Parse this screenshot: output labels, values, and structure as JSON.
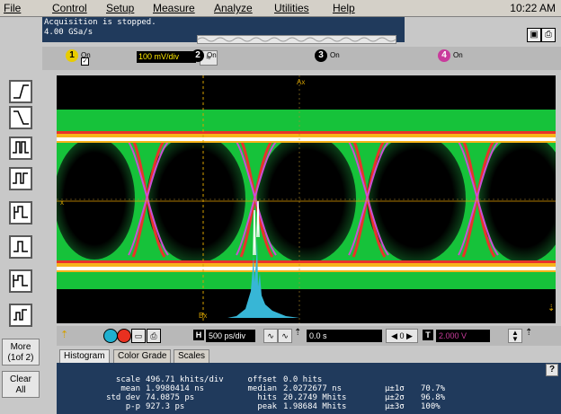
{
  "menubar": {
    "items": [
      "File",
      "Control",
      "Setup",
      "Measure",
      "Analyze",
      "Utilities",
      "Help"
    ],
    "clock": "10:22 AM"
  },
  "status": {
    "line1": "Acquisition is stopped.",
    "line2": "4.00 GSa/s"
  },
  "channels": [
    {
      "num": "1",
      "state": "On",
      "scale": "100 mV/div",
      "checked": true
    },
    {
      "num": "2",
      "state": "On"
    },
    {
      "num": "3",
      "state": "On"
    },
    {
      "num": "4",
      "state": "On"
    }
  ],
  "screen": {
    "ax_label": "Ax",
    "bx_label": "Bx",
    "x_label": "x"
  },
  "sidebar": {
    "more_line1": "More",
    "more_line2": "(1of 2)",
    "clear_line1": "Clear",
    "clear_line2": "All"
  },
  "timebase": {
    "h": "H",
    "horizontal": "500 ps/div",
    "delay": "0.0 s",
    "t": "T",
    "trigger_level": "2.000 V"
  },
  "tabs": [
    "Histogram",
    "Color Grade",
    "Scales"
  ],
  "stats": {
    "col1_labels": [
      "scale",
      "mean",
      "std dev",
      "p-p"
    ],
    "col1_values": [
      "496.71 khits/div",
      "1.9980414 ns",
      "74.0875 ps",
      "927.3 ps"
    ],
    "col2_labels": [
      "offset",
      "median",
      "hits",
      "peak"
    ],
    "col2_values": [
      "0.0 hits",
      "2.0272677 ns",
      "20.2749 Mhits",
      "1.98684 Mhits"
    ],
    "col3_labels": [
      "µ±1σ",
      "µ±2σ",
      "µ±3σ"
    ],
    "col3_values": [
      "70.7%",
      "96.8%",
      "100%"
    ]
  },
  "colors": {
    "screen_bg": "#000000",
    "grid": "#b08a2a",
    "trace_green": "#16c23a",
    "trace_red": "#e8332a",
    "trace_magenta": "#c94fd6",
    "trace_white": "#ffffff",
    "hist_fill": "#37b6d6"
  }
}
